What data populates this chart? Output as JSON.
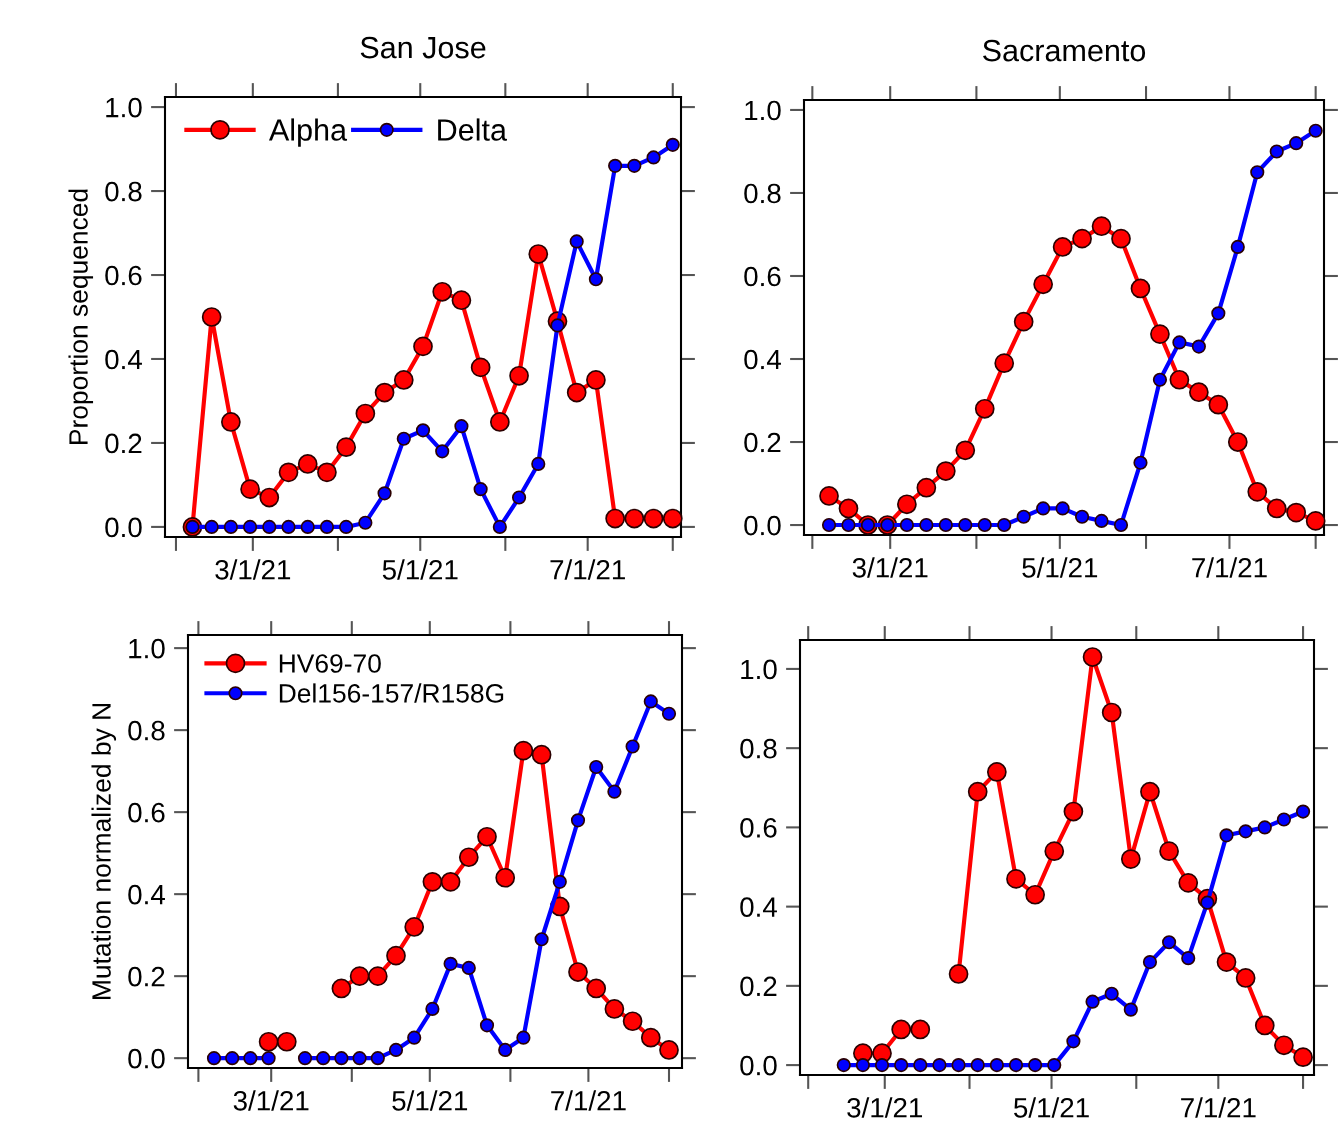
{
  "chart_data": [
    {
      "type": "line",
      "title": "San Jose",
      "ylabel": "Proportion sequenced",
      "marker": "circle",
      "legend": "top left",
      "x": [
        "2021-02-07",
        "2021-02-14",
        "2021-02-21",
        "2021-02-28",
        "2021-03-07",
        "2021-03-14",
        "2021-03-21",
        "2021-03-28",
        "2021-04-04",
        "2021-04-11",
        "2021-04-18",
        "2021-04-25",
        "2021-05-02",
        "2021-05-09",
        "2021-05-16",
        "2021-05-23",
        "2021-05-30",
        "2021-06-06",
        "2021-06-13",
        "2021-06-20",
        "2021-06-27",
        "2021-07-04",
        "2021-07-11",
        "2021-07-18",
        "2021-07-25",
        "2021-08-01"
      ],
      "series": [
        {
          "name": "Alpha",
          "color": "#ff0000",
          "values": [
            0,
            0.5,
            0.25,
            0.09,
            0.07,
            0.13,
            0.15,
            0.13,
            0.19,
            0.27,
            0.32,
            0.35,
            0.43,
            0.56,
            0.54,
            0.38,
            0.25,
            0.36,
            0.65,
            0.49,
            0.32,
            0.35,
            0.02,
            0.02,
            0.02,
            0.02
          ]
        },
        {
          "name": "Delta",
          "color": "#0000ff",
          "values": [
            0,
            0,
            0,
            0,
            0,
            0,
            0,
            0,
            0,
            0.01,
            0.08,
            0.21,
            0.23,
            0.18,
            0.24,
            0.09,
            0,
            0.07,
            0.15,
            0.48,
            0.68,
            0.59,
            0.86,
            0.86,
            0.88,
            0.91
          ]
        }
      ],
      "xlim": [
        "2021-01-28",
        "2021-08-04"
      ],
      "xticks": [
        {
          "value": "2021-02-01",
          "label": null
        },
        {
          "value": "2021-03-01",
          "label": "3/1/21"
        },
        {
          "value": "2021-04-01",
          "label": null
        },
        {
          "value": "2021-05-01",
          "label": "5/1/21"
        },
        {
          "value": "2021-06-01",
          "label": null
        },
        {
          "value": "2021-07-01",
          "label": "7/1/21"
        },
        {
          "value": "2021-08-01",
          "label": null
        }
      ],
      "ylim": [
        -0.024,
        1.024
      ],
      "yticks": [
        {
          "value": 0,
          "label": "0.0"
        },
        {
          "value": 0.2,
          "label": "0.2"
        },
        {
          "value": 0.4,
          "label": "0.4"
        },
        {
          "value": 0.6,
          "label": "0.6"
        },
        {
          "value": 0.8,
          "label": "0.8"
        },
        {
          "value": 1,
          "label": "1.0"
        }
      ]
    },
    {
      "type": "line",
      "title": "Sacramento",
      "marker": "circle",
      "x": [
        "2021-02-07",
        "2021-02-14",
        "2021-02-21",
        "2021-02-28",
        "2021-03-07",
        "2021-03-14",
        "2021-03-21",
        "2021-03-28",
        "2021-04-04",
        "2021-04-11",
        "2021-04-18",
        "2021-04-25",
        "2021-05-02",
        "2021-05-09",
        "2021-05-16",
        "2021-05-23",
        "2021-05-30",
        "2021-06-06",
        "2021-06-13",
        "2021-06-20",
        "2021-06-27",
        "2021-07-04",
        "2021-07-11",
        "2021-07-18",
        "2021-07-25",
        "2021-08-01"
      ],
      "series": [
        {
          "color": "#ff0000",
          "values": [
            0.07,
            0.04,
            0,
            0,
            0.05,
            0.09,
            0.13,
            0.18,
            0.28,
            0.39,
            0.49,
            0.58,
            0.67,
            0.69,
            0.72,
            0.69,
            0.57,
            0.46,
            0.35,
            0.32,
            0.29,
            0.2,
            0.08,
            0.04,
            0.03,
            0.01
          ]
        },
        {
          "color": "#0000ff",
          "values": [
            0,
            0,
            0,
            0,
            0,
            0,
            0,
            0,
            0,
            0,
            0.02,
            0.04,
            0.04,
            0.02,
            0.01,
            0,
            0.15,
            0.35,
            0.44,
            0.43,
            0.51,
            0.67,
            0.85,
            0.9,
            0.92,
            0.95
          ]
        }
      ],
      "xlim": [
        "2021-01-29",
        "2021-08-04"
      ],
      "xticks": [
        {
          "value": "2021-02-01",
          "label": null
        },
        {
          "value": "2021-03-01",
          "label": "3/1/21"
        },
        {
          "value": "2021-04-01",
          "label": null
        },
        {
          "value": "2021-05-01",
          "label": "5/1/21"
        },
        {
          "value": "2021-06-01",
          "label": null
        },
        {
          "value": "2021-07-01",
          "label": "7/1/21"
        },
        {
          "value": "2021-08-01",
          "label": null
        }
      ],
      "ylim": [
        -0.024,
        1.024
      ],
      "yticks": [
        {
          "value": 0,
          "label": "0.0"
        },
        {
          "value": 0.2,
          "label": "0.2"
        },
        {
          "value": 0.4,
          "label": "0.4"
        },
        {
          "value": 0.6,
          "label": "0.6"
        },
        {
          "value": 0.8,
          "label": "0.8"
        },
        {
          "value": 1,
          "label": "1.0"
        }
      ]
    },
    {
      "type": "line",
      "ylabel": "Mutation normalized by N",
      "marker": "circle",
      "legend": "top left",
      "x": [
        "2021-02-07",
        "2021-02-14",
        "2021-02-21",
        "2021-02-28",
        "2021-03-07",
        "2021-03-14",
        "2021-03-21",
        "2021-03-28",
        "2021-04-04",
        "2021-04-11",
        "2021-04-18",
        "2021-04-25",
        "2021-05-02",
        "2021-05-09",
        "2021-05-16",
        "2021-05-23",
        "2021-05-30",
        "2021-06-06",
        "2021-06-13",
        "2021-06-20",
        "2021-06-27",
        "2021-07-04",
        "2021-07-11",
        "2021-07-18",
        "2021-07-25",
        "2021-08-01"
      ],
      "series": [
        {
          "name": "HV69-70",
          "color": "#ff0000",
          "values": [
            null,
            null,
            null,
            0.04,
            0.04,
            null,
            null,
            0.17,
            0.2,
            0.2,
            0.25,
            0.32,
            0.43,
            0.43,
            0.49,
            0.54,
            0.44,
            0.75,
            0.74,
            0.37,
            0.21,
            0.17,
            0.12,
            0.09,
            0.05,
            0.02
          ]
        },
        {
          "name": "Del156-157/R158G",
          "color": "#0000ff",
          "values": [
            0,
            0,
            0,
            0,
            null,
            0,
            0,
            0,
            0,
            0,
            0.02,
            0.05,
            0.12,
            0.23,
            0.22,
            0.08,
            0.02,
            0.05,
            0.29,
            0.43,
            0.58,
            0.71,
            0.65,
            0.76,
            0.87,
            0.84
          ]
        }
      ],
      "xlim": [
        "2021-01-28",
        "2021-08-06"
      ],
      "xticks": [
        {
          "value": "2021-02-01",
          "label": null
        },
        {
          "value": "2021-03-01",
          "label": "3/1/21"
        },
        {
          "value": "2021-04-01",
          "label": null
        },
        {
          "value": "2021-05-01",
          "label": "5/1/21"
        },
        {
          "value": "2021-06-01",
          "label": null
        },
        {
          "value": "2021-07-01",
          "label": "7/1/21"
        },
        {
          "value": "2021-08-01",
          "label": null
        }
      ],
      "ylim": [
        -0.024,
        1.032
      ],
      "yticks": [
        {
          "value": 0,
          "label": "0.0"
        },
        {
          "value": 0.2,
          "label": "0.2"
        },
        {
          "value": 0.4,
          "label": "0.4"
        },
        {
          "value": 0.6,
          "label": "0.6"
        },
        {
          "value": 0.8,
          "label": "0.8"
        },
        {
          "value": 1,
          "label": "1.0"
        }
      ]
    },
    {
      "type": "line",
      "marker": "circle",
      "x": [
        "2021-02-14",
        "2021-02-21",
        "2021-02-28",
        "2021-03-07",
        "2021-03-14",
        "2021-03-21",
        "2021-03-28",
        "2021-04-04",
        "2021-04-11",
        "2021-04-18",
        "2021-04-25",
        "2021-05-02",
        "2021-05-09",
        "2021-05-16",
        "2021-05-23",
        "2021-05-30",
        "2021-06-06",
        "2021-06-13",
        "2021-06-20",
        "2021-06-27",
        "2021-07-04",
        "2021-07-11",
        "2021-07-18",
        "2021-07-25",
        "2021-08-01"
      ],
      "series": [
        {
          "color": "#ff0000",
          "values": [
            null,
            0.03,
            0.03,
            0.09,
            0.09,
            null,
            0.23,
            0.69,
            0.74,
            0.47,
            0.43,
            0.54,
            0.64,
            1.03,
            0.89,
            0.52,
            0.69,
            0.54,
            0.46,
            0.42,
            0.26,
            0.22,
            0.1,
            0.05,
            0.02
          ]
        },
        {
          "color": "#0000ff",
          "values": [
            0,
            0,
            0,
            0,
            0,
            0,
            0,
            0,
            0,
            0,
            0,
            0,
            0.06,
            0.16,
            0.18,
            0.14,
            0.26,
            0.31,
            0.27,
            0.41,
            0.58,
            0.59,
            0.6,
            0.62,
            0.64
          ]
        }
      ],
      "xlim": [
        "2021-01-29",
        "2021-08-05"
      ],
      "xticks": [
        {
          "value": "2021-02-01",
          "label": null
        },
        {
          "value": "2021-03-01",
          "label": "3/1/21"
        },
        {
          "value": "2021-04-01",
          "label": null
        },
        {
          "value": "2021-05-01",
          "label": "5/1/21"
        },
        {
          "value": "2021-06-01",
          "label": null
        },
        {
          "value": "2021-07-01",
          "label": "7/1/21"
        },
        {
          "value": "2021-08-01",
          "label": null
        }
      ],
      "ylim": [
        -0.025,
        1.073
      ],
      "yticks": [
        {
          "value": 0,
          "label": "0.0"
        },
        {
          "value": 0.2,
          "label": "0.2"
        },
        {
          "value": 0.4,
          "label": "0.4"
        },
        {
          "value": 0.6,
          "label": "0.6"
        },
        {
          "value": 0.8,
          "label": "0.8"
        },
        {
          "value": 1,
          "label": "1.0"
        }
      ]
    }
  ]
}
